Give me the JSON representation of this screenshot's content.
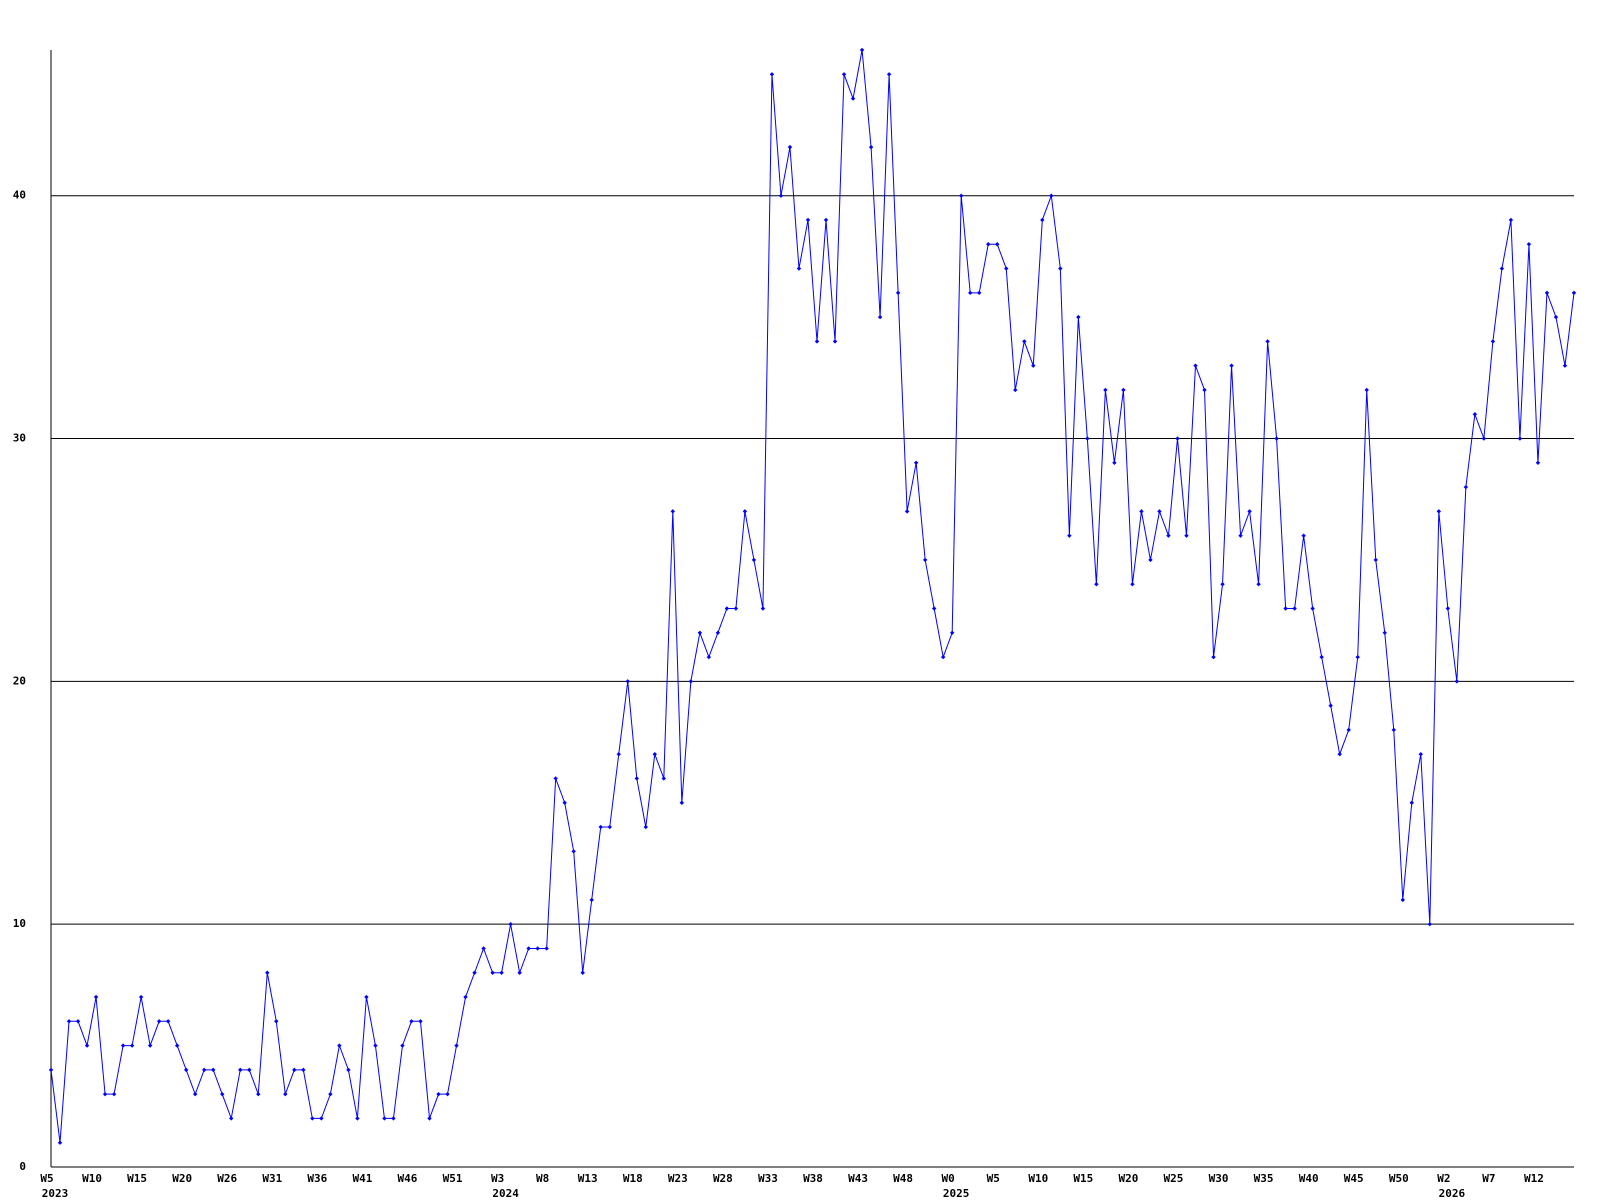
{
  "chart_data": {
    "type": "line",
    "color": "#0000ff",
    "grid": true,
    "ylim": [
      0,
      46
    ],
    "yticks": [
      0,
      10,
      20,
      30,
      40
    ],
    "values": [
      4,
      1,
      6,
      6,
      5,
      7,
      3,
      3,
      5,
      5,
      7,
      5,
      6,
      6,
      5,
      4,
      3,
      4,
      4,
      3,
      2,
      4,
      4,
      3,
      8,
      6,
      3,
      4,
      4,
      2,
      2,
      3,
      5,
      4,
      2,
      7,
      5,
      2,
      2,
      5,
      6,
      6,
      2,
      3,
      3,
      5,
      7,
      8,
      9,
      8,
      8,
      10,
      8,
      9,
      9,
      9,
      16,
      15,
      13,
      8,
      11,
      14,
      14,
      17,
      20,
      16,
      14,
      17,
      16,
      27,
      15,
      20,
      22,
      21,
      22,
      23,
      23,
      27,
      25,
      23,
      45,
      40,
      42,
      37,
      39,
      34,
      39,
      34,
      45,
      44,
      46,
      42,
      35,
      45,
      36,
      27,
      29,
      25,
      23,
      21,
      22,
      40,
      36,
      36,
      38,
      38,
      37,
      32,
      34,
      33,
      39,
      40,
      37,
      26,
      35,
      30,
      24,
      32,
      29,
      32,
      24,
      27,
      25,
      27,
      26,
      30,
      26,
      33,
      32,
      21,
      24,
      33,
      26,
      27,
      24,
      34,
      30,
      23,
      23,
      26,
      23,
      21,
      19,
      17,
      18,
      21,
      32,
      25,
      22,
      18,
      11,
      15,
      17,
      10,
      27,
      23,
      20,
      28,
      31,
      30,
      34,
      37,
      39,
      30,
      38,
      29,
      36,
      35,
      33,
      36
    ],
    "categories": [
      "W5",
      null,
      null,
      null,
      null,
      "W10",
      null,
      null,
      null,
      null,
      "W15",
      null,
      null,
      null,
      null,
      "W20",
      null,
      null,
      null,
      null,
      "W26",
      null,
      null,
      null,
      null,
      "W31",
      null,
      null,
      null,
      null,
      "W36",
      null,
      null,
      null,
      null,
      "W41",
      null,
      null,
      null,
      null,
      "W46",
      null,
      null,
      null,
      null,
      "W51",
      null,
      null,
      null,
      null,
      "W3",
      null,
      null,
      null,
      null,
      "W8",
      null,
      null,
      null,
      null,
      "W13",
      null,
      null,
      null,
      null,
      "W18",
      null,
      null,
      null,
      null,
      "W23",
      null,
      null,
      null,
      null,
      "W28",
      null,
      null,
      null,
      null,
      "W33",
      null,
      null,
      null,
      null,
      "W38",
      null,
      null,
      null,
      null,
      "W43",
      null,
      null,
      null,
      null,
      "W48",
      null,
      null,
      null,
      null,
      "W0",
      null,
      null,
      null,
      null,
      "W5",
      null,
      null,
      null,
      null,
      "W10",
      null,
      null,
      null,
      null,
      "W15",
      null,
      null,
      null,
      null,
      "W20",
      null,
      null,
      null,
      null,
      "W25",
      null,
      null,
      null,
      null,
      "W30",
      null,
      null,
      null,
      null,
      "W35",
      null,
      null,
      null,
      null,
      "W40",
      null,
      null,
      null,
      null,
      "W45",
      null,
      null,
      null,
      null,
      "W50",
      null,
      null,
      null,
      null,
      "W2",
      null,
      null,
      null,
      null,
      "W7",
      null,
      null,
      null,
      null,
      "W12",
      null,
      null,
      null,
      null
    ],
    "years": [
      "2023",
      null,
      null,
      null,
      null,
      null,
      null,
      null,
      null,
      null,
      null,
      null,
      null,
      null,
      null,
      null,
      null,
      null,
      null,
      null,
      null,
      null,
      null,
      null,
      null,
      null,
      null,
      null,
      null,
      null,
      null,
      null,
      null,
      null,
      null,
      null,
      null,
      null,
      null,
      null,
      null,
      null,
      null,
      null,
      null,
      null,
      null,
      null,
      null,
      null,
      "2024",
      null,
      null,
      null,
      null,
      null,
      null,
      null,
      null,
      null,
      null,
      null,
      null,
      null,
      null,
      null,
      null,
      null,
      null,
      null,
      null,
      null,
      null,
      null,
      null,
      null,
      null,
      null,
      null,
      null,
      null,
      null,
      null,
      null,
      null,
      null,
      null,
      null,
      null,
      null,
      null,
      null,
      null,
      null,
      null,
      null,
      null,
      null,
      null,
      null,
      "2025",
      null,
      null,
      null,
      null,
      null,
      null,
      null,
      null,
      null,
      null,
      null,
      null,
      null,
      null,
      null,
      null,
      null,
      null,
      null,
      null,
      null,
      null,
      null,
      null,
      null,
      null,
      null,
      null,
      null,
      null,
      null,
      null,
      null,
      null,
      null,
      null,
      null,
      null,
      null,
      null,
      null,
      null,
      null,
      null,
      null,
      null,
      null,
      null,
      null,
      null,
      null,
      null,
      null,
      null,
      "2026",
      null,
      null,
      null,
      null,
      null,
      null,
      null,
      null,
      null,
      null,
      null,
      null,
      null,
      null
    ]
  }
}
